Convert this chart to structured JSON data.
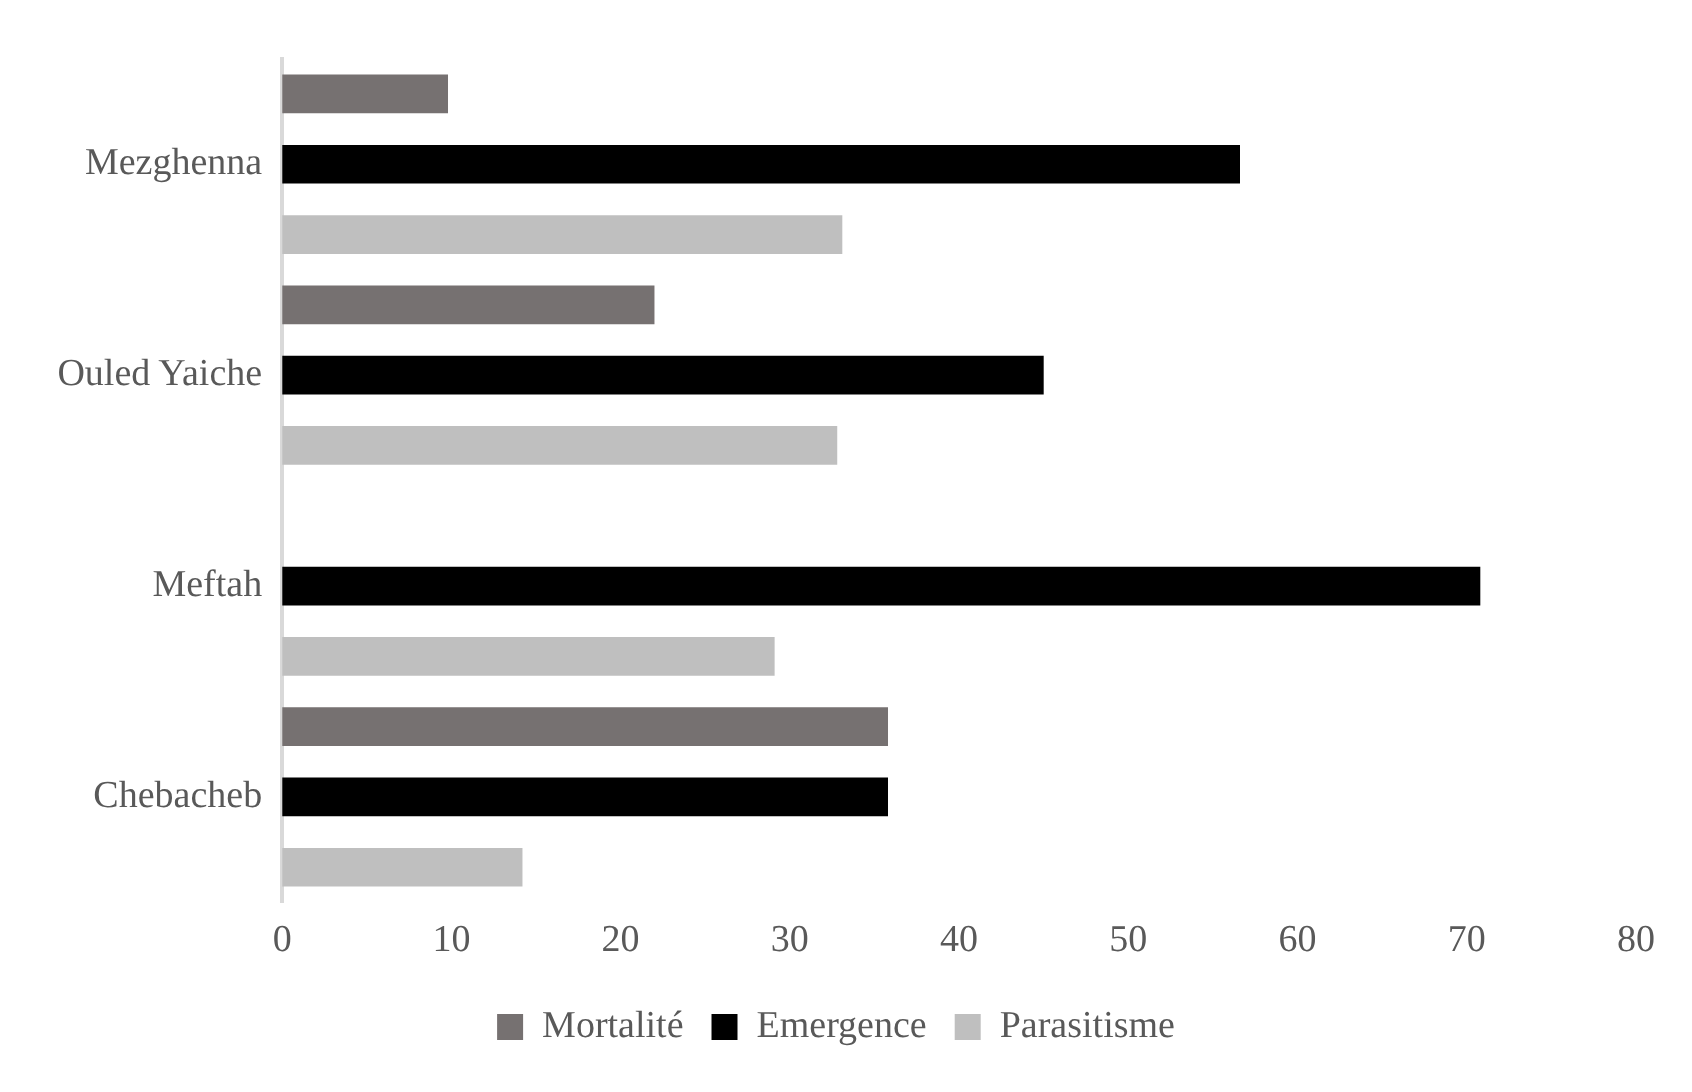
{
  "chart_data": {
    "type": "bar",
    "orientation": "horizontal",
    "categories": [
      "Mezghenna",
      "Ouled Yaiche",
      "Meftah",
      "Chebacheb"
    ],
    "series": [
      {
        "name": "Mortalité",
        "color": "#767171",
        "values": [
          9.8,
          22.0,
          0,
          35.8
        ]
      },
      {
        "name": "Emergence",
        "color": "#000000",
        "values": [
          56.6,
          45.0,
          70.8,
          35.8
        ]
      },
      {
        "name": "Parasitisme",
        "color": "#bfbfbf",
        "values": [
          33.1,
          32.8,
          29.1,
          14.2
        ]
      }
    ],
    "xlim": [
      0,
      80
    ],
    "xticks": [
      0,
      10,
      20,
      30,
      40,
      50,
      60,
      70,
      80
    ],
    "grid": false,
    "legend": "bottom"
  }
}
